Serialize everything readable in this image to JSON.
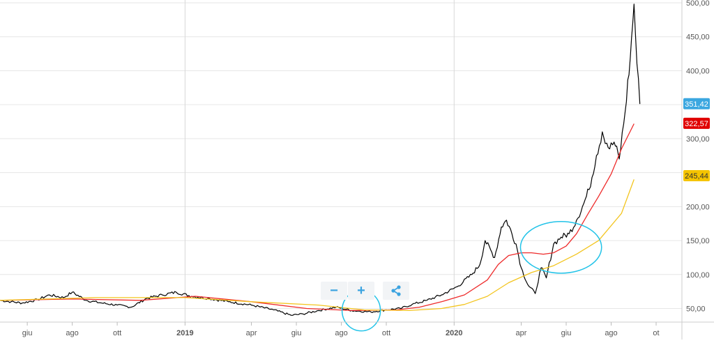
{
  "toolbar": {
    "zoom_out_label": "−",
    "zoom_in_label": "+",
    "zoom_out_icon": "minus-icon",
    "zoom_in_icon": "plus-icon",
    "share_icon": "share-icon"
  },
  "chart_data": {
    "type": "line",
    "title": "",
    "xlabel": "",
    "ylabel": "",
    "ylim": [
      30,
      500
    ],
    "x_range": [
      "2018-04-25",
      "2020-11-05"
    ],
    "grid": true,
    "y_ticks": [
      {
        "value": 50,
        "label": "50,00"
      },
      {
        "value": 100,
        "label": "100,00"
      },
      {
        "value": 150,
        "label": "150,00"
      },
      {
        "value": 200,
        "label": "200,00"
      },
      {
        "value": 250,
        "label": "250,00"
      },
      {
        "value": 300,
        "label": "300,00"
      },
      {
        "value": 350,
        "label": "350,00"
      },
      {
        "value": 400,
        "label": "400,00"
      },
      {
        "value": 450,
        "label": "450,00"
      },
      {
        "value": 500,
        "label": "500,00"
      }
    ],
    "x_ticks": [
      {
        "date": "2018-06-01",
        "label": "giu",
        "bold": false
      },
      {
        "date": "2018-08-01",
        "label": "ago",
        "bold": false
      },
      {
        "date": "2018-10-01",
        "label": "ott",
        "bold": false
      },
      {
        "date": "2019-01-01",
        "label": "2019",
        "bold": true
      },
      {
        "date": "2019-04-01",
        "label": "apr",
        "bold": false
      },
      {
        "date": "2019-06-01",
        "label": "giu",
        "bold": false
      },
      {
        "date": "2019-08-01",
        "label": "ago",
        "bold": false
      },
      {
        "date": "2019-10-01",
        "label": "ott",
        "bold": false
      },
      {
        "date": "2020-01-01",
        "label": "2020",
        "bold": true
      },
      {
        "date": "2020-04-01",
        "label": "apr",
        "bold": false
      },
      {
        "date": "2020-06-01",
        "label": "giu",
        "bold": false
      },
      {
        "date": "2020-08-01",
        "label": "ago",
        "bold": false
      },
      {
        "date": "2020-10-01",
        "label": "ot",
        "bold": false
      }
    ],
    "vertical_gridlines": [
      "2019-01-01",
      "2020-01-01"
    ],
    "series": [
      {
        "color": "#000000",
        "last_value_label": "351,42",
        "label_color": "#3ba7e0",
        "points": [
          [
            "2018-04-25",
            62
          ],
          [
            "2018-05-10",
            60
          ],
          [
            "2018-05-25",
            58
          ],
          [
            "2018-06-15",
            63
          ],
          [
            "2018-07-01",
            70
          ],
          [
            "2018-07-20",
            66
          ],
          [
            "2018-08-01",
            74
          ],
          [
            "2018-08-20",
            62
          ],
          [
            "2018-09-10",
            58
          ],
          [
            "2018-10-01",
            55
          ],
          [
            "2018-10-20",
            52
          ],
          [
            "2018-11-10",
            65
          ],
          [
            "2018-12-01",
            70
          ],
          [
            "2018-12-20",
            74
          ],
          [
            "2019-01-10",
            68
          ],
          [
            "2019-02-01",
            65
          ],
          [
            "2019-03-01",
            60
          ],
          [
            "2019-04-01",
            55
          ],
          [
            "2019-05-01",
            48
          ],
          [
            "2019-05-25",
            40
          ],
          [
            "2019-06-10",
            42
          ],
          [
            "2019-07-01",
            47
          ],
          [
            "2019-07-25",
            52
          ],
          [
            "2019-08-15",
            47
          ],
          [
            "2019-09-10",
            45
          ],
          [
            "2019-10-01",
            48
          ],
          [
            "2019-10-20",
            50
          ],
          [
            "2019-11-05",
            56
          ],
          [
            "2019-11-25",
            62
          ],
          [
            "2019-12-15",
            70
          ],
          [
            "2020-01-05",
            82
          ],
          [
            "2020-01-25",
            100
          ],
          [
            "2020-02-05",
            115
          ],
          [
            "2020-02-12",
            150
          ],
          [
            "2020-02-25",
            125
          ],
          [
            "2020-03-05",
            170
          ],
          [
            "2020-03-12",
            180
          ],
          [
            "2020-03-25",
            145
          ],
          [
            "2020-04-01",
            110
          ],
          [
            "2020-04-10",
            85
          ],
          [
            "2020-04-20",
            72
          ],
          [
            "2020-04-28",
            110
          ],
          [
            "2020-05-05",
            95
          ],
          [
            "2020-05-15",
            145
          ],
          [
            "2020-05-25",
            155
          ],
          [
            "2020-06-05",
            160
          ],
          [
            "2020-06-15",
            180
          ],
          [
            "2020-06-25",
            205
          ],
          [
            "2020-07-02",
            225
          ],
          [
            "2020-07-12",
            275
          ],
          [
            "2020-07-20",
            310
          ],
          [
            "2020-07-30",
            285
          ],
          [
            "2020-08-05",
            295
          ],
          [
            "2020-08-12",
            270
          ],
          [
            "2020-08-20",
            340
          ],
          [
            "2020-08-27",
            420
          ],
          [
            "2020-09-01",
            498
          ],
          [
            "2020-09-05",
            410
          ],
          [
            "2020-09-09",
            351
          ]
        ]
      },
      {
        "color": "#ee2a2a",
        "last_value_label": "322,57",
        "label_color": "#e00000",
        "points": [
          [
            "2018-04-25",
            62
          ],
          [
            "2018-08-01",
            64
          ],
          [
            "2018-11-01",
            62
          ],
          [
            "2019-01-15",
            68
          ],
          [
            "2019-04-01",
            60
          ],
          [
            "2019-06-15",
            50
          ],
          [
            "2019-08-15",
            47
          ],
          [
            "2019-10-15",
            48
          ],
          [
            "2019-11-15",
            52
          ],
          [
            "2019-12-15",
            60
          ],
          [
            "2020-01-15",
            70
          ],
          [
            "2020-02-15",
            92
          ],
          [
            "2020-03-01",
            115
          ],
          [
            "2020-03-15",
            128
          ],
          [
            "2020-04-01",
            132
          ],
          [
            "2020-04-15",
            132
          ],
          [
            "2020-05-01",
            130
          ],
          [
            "2020-05-15",
            132
          ],
          [
            "2020-06-01",
            142
          ],
          [
            "2020-06-15",
            160
          ],
          [
            "2020-07-01",
            190
          ],
          [
            "2020-07-15",
            215
          ],
          [
            "2020-08-01",
            248
          ],
          [
            "2020-08-15",
            285
          ],
          [
            "2020-09-01",
            322
          ]
        ]
      },
      {
        "color": "#f3c51f",
        "last_value_label": "245,44",
        "label_color": "#f5c400",
        "points": [
          [
            "2018-04-25",
            62
          ],
          [
            "2018-09-01",
            66
          ],
          [
            "2019-01-01",
            66
          ],
          [
            "2019-04-01",
            60
          ],
          [
            "2019-07-01",
            55
          ],
          [
            "2019-09-01",
            48
          ],
          [
            "2019-11-01",
            47
          ],
          [
            "2019-12-15",
            50
          ],
          [
            "2020-01-15",
            56
          ],
          [
            "2020-02-15",
            68
          ],
          [
            "2020-03-15",
            88
          ],
          [
            "2020-04-15",
            103
          ],
          [
            "2020-05-15",
            113
          ],
          [
            "2020-06-15",
            130
          ],
          [
            "2020-07-15",
            150
          ],
          [
            "2020-08-15",
            190
          ],
          [
            "2020-09-01",
            240
          ]
        ]
      }
    ],
    "annotations": [
      {
        "type": "ellipse",
        "color": "#22c3e8",
        "center": [
          "2019-08-28",
          47
        ],
        "width_days": 26,
        "height_value": 30
      },
      {
        "type": "ellipse",
        "color": "#22c3e8",
        "center": [
          "2020-05-25",
          140
        ],
        "width_days": 55,
        "height_value": 38
      }
    ]
  }
}
